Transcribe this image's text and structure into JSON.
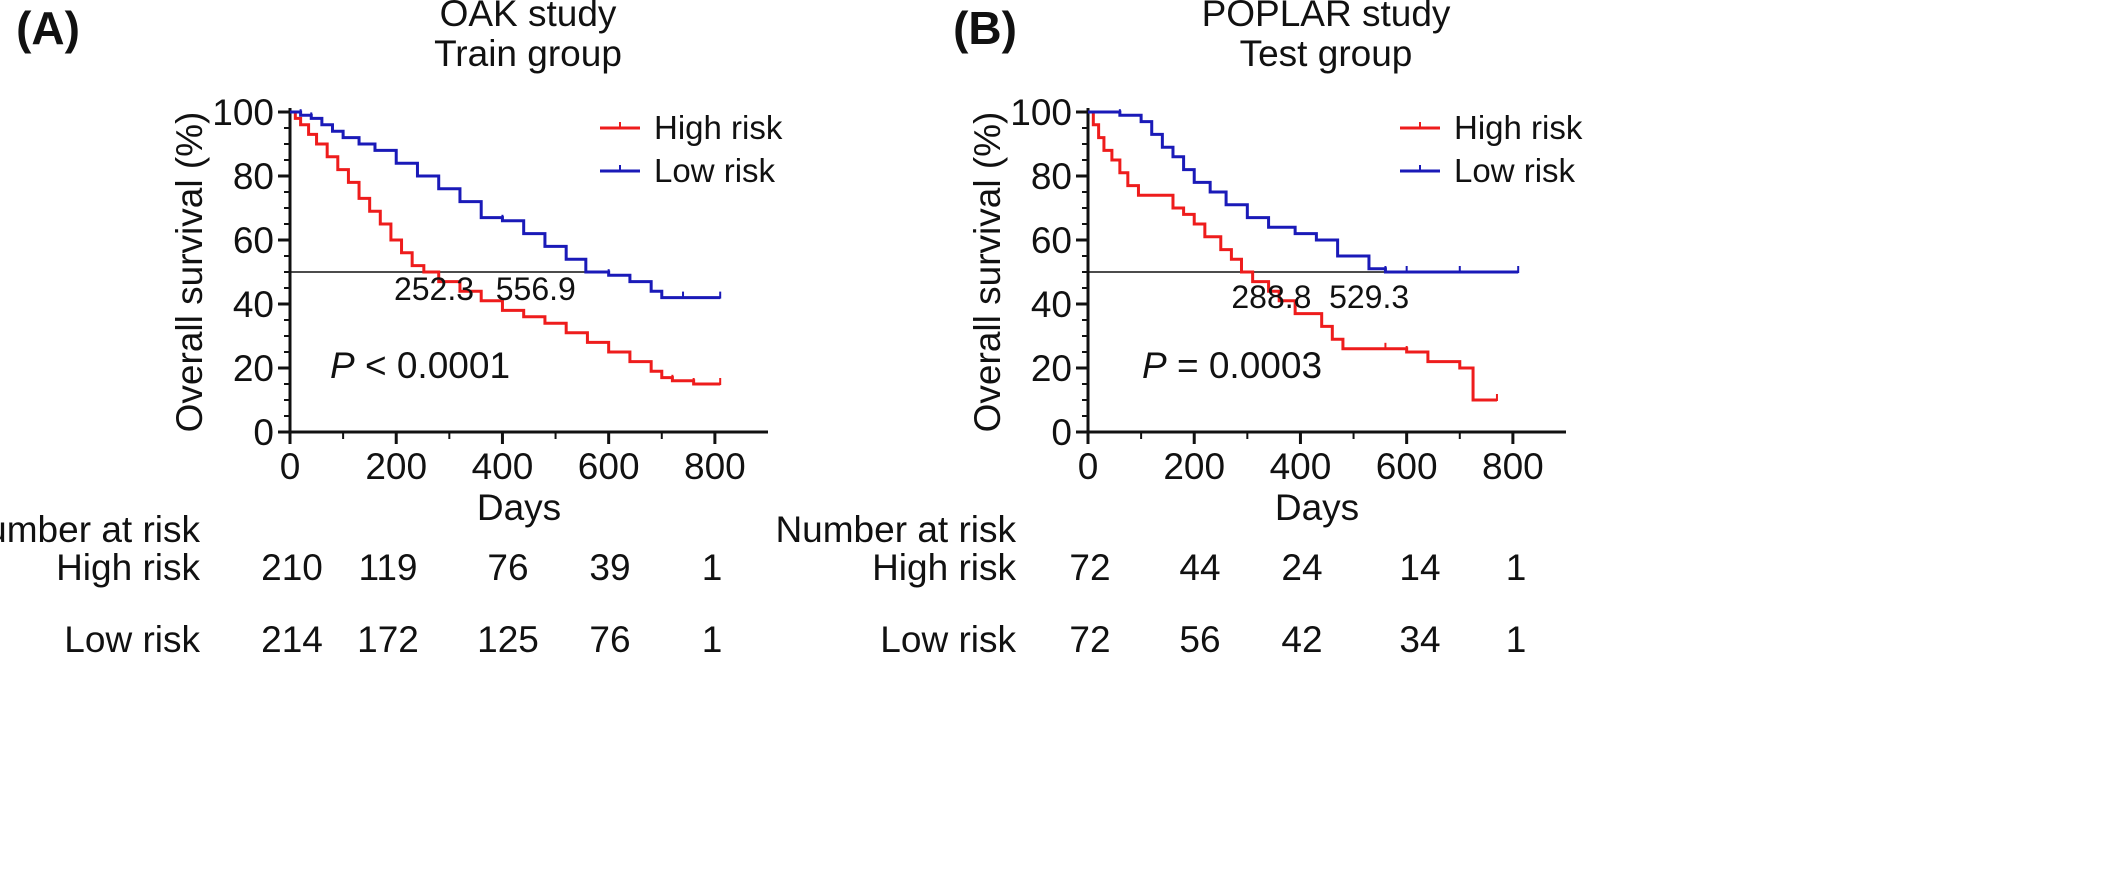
{
  "chart_data": [
    {
      "type": "line",
      "panel_label": "(A)",
      "title": "OAK study",
      "subtitle": "Train group",
      "xlabel": "Days",
      "ylabel": "Overall survival (%)",
      "xlim": [
        0,
        900
      ],
      "ylim": [
        0,
        100
      ],
      "xticks": [
        0,
        200,
        400,
        600,
        800
      ],
      "yticks": [
        0,
        20,
        40,
        60,
        80,
        100
      ],
      "reference_line": {
        "y": 50
      },
      "legend_position": "top-right",
      "grid": false,
      "p_value": {
        "prefix": "P",
        "text": " < 0.0001"
      },
      "medians": [
        {
          "label": "252.3",
          "x": 252.3
        },
        {
          "label": "556.9",
          "x": 556.9
        }
      ],
      "series": [
        {
          "name": "High risk",
          "color": "#ee1c1c",
          "x": [
            0,
            10,
            20,
            35,
            50,
            70,
            90,
            110,
            130,
            150,
            170,
            190,
            210,
            230,
            252,
            280,
            320,
            360,
            400,
            440,
            480,
            520,
            560,
            600,
            640,
            680,
            700,
            720,
            760,
            810
          ],
          "y": [
            100,
            98,
            96,
            93,
            90,
            86,
            82,
            78,
            73,
            69,
            65,
            60,
            56,
            52,
            50,
            47,
            44,
            41,
            38,
            36,
            34,
            31,
            28,
            25,
            22,
            19,
            17,
            16,
            15,
            15
          ]
        },
        {
          "name": "Low risk",
          "color": "#1a1ab8",
          "x": [
            0,
            20,
            40,
            60,
            80,
            100,
            130,
            160,
            200,
            240,
            280,
            320,
            360,
            400,
            440,
            480,
            520,
            557,
            600,
            640,
            680,
            700,
            740,
            810
          ],
          "y": [
            100,
            99,
            98,
            96,
            94,
            92,
            90,
            88,
            84,
            80,
            76,
            72,
            67,
            66,
            62,
            58,
            54,
            50,
            49,
            47,
            44,
            42,
            42,
            42
          ]
        }
      ],
      "number_at_risk": {
        "heading": "Number at risk",
        "rows": [
          {
            "label": "High risk",
            "values": [
              "210",
              "119",
              "76",
              "39",
              "1"
            ]
          },
          {
            "label": "Low risk",
            "values": [
              "214",
              "172",
              "125",
              "76",
              "1"
            ]
          }
        ]
      }
    },
    {
      "type": "line",
      "panel_label": "(B)",
      "title": "POPLAR study",
      "subtitle": "Test group",
      "xlabel": "Days",
      "ylabel": "Overall survival (%)",
      "xlim": [
        0,
        900
      ],
      "ylim": [
        0,
        100
      ],
      "xticks": [
        0,
        200,
        400,
        600,
        800
      ],
      "yticks": [
        0,
        20,
        40,
        60,
        80,
        100
      ],
      "reference_line": {
        "y": 50
      },
      "legend_position": "top-right",
      "grid": false,
      "p_value": {
        "prefix": "P",
        "text": " = 0.0003"
      },
      "medians": [
        {
          "label": "288.8",
          "x": 288.8
        },
        {
          "label": "529.3",
          "x": 529.3
        }
      ],
      "series": [
        {
          "name": "High risk",
          "color": "#ee1c1c",
          "x": [
            0,
            10,
            20,
            30,
            45,
            60,
            75,
            95,
            160,
            180,
            200,
            220,
            250,
            270,
            289,
            310,
            340,
            360,
            390,
            440,
            460,
            480,
            560,
            600,
            640,
            700,
            725,
            770
          ],
          "y": [
            100,
            96,
            92,
            88,
            85,
            81,
            77,
            74,
            70,
            68,
            65,
            61,
            57,
            54,
            50,
            47,
            44,
            41,
            37,
            33,
            29,
            26,
            26,
            25,
            22,
            20,
            10,
            10
          ]
        },
        {
          "name": "Low risk",
          "color": "#1a1ab8",
          "x": [
            0,
            60,
            100,
            120,
            140,
            160,
            180,
            200,
            230,
            260,
            300,
            340,
            390,
            430,
            470,
            529,
            560,
            600,
            700,
            810
          ],
          "y": [
            100,
            99,
            97,
            93,
            89,
            86,
            82,
            78,
            75,
            71,
            67,
            64,
            62,
            60,
            55,
            51,
            50,
            50,
            50,
            50
          ]
        }
      ],
      "number_at_risk": {
        "heading": "Number at risk",
        "rows": [
          {
            "label": "High risk",
            "values": [
              "72",
              "44",
              "24",
              "14",
              "1"
            ]
          },
          {
            "label": "Low risk",
            "values": [
              "72",
              "56",
              "42",
              "34",
              "1"
            ]
          }
        ]
      }
    }
  ]
}
